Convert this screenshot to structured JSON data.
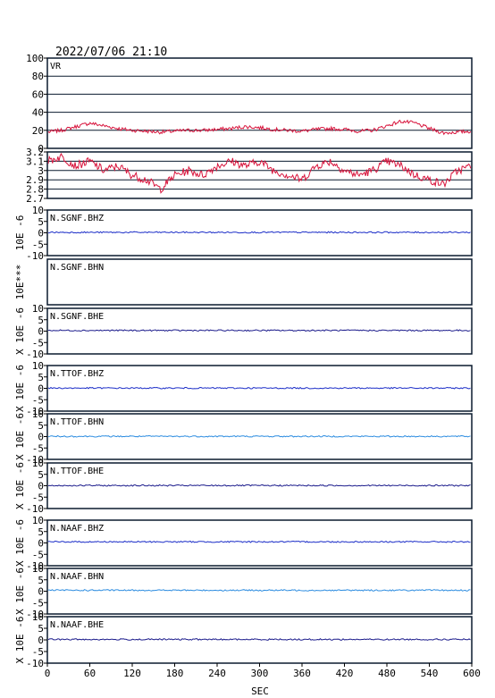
{
  "title": "2022/07/06 21:10",
  "xlabel": "SEC",
  "x_ticks": [
    0,
    60,
    120,
    180,
    240,
    300,
    360,
    420,
    480,
    540,
    600
  ],
  "chart_data": [
    {
      "type": "line",
      "label": "VR",
      "xlim": [
        0,
        600
      ],
      "ylim": [
        0,
        100
      ],
      "yticks": [
        0,
        20,
        40,
        60,
        80,
        100
      ],
      "grid": true,
      "color": "#d8143c",
      "y_axis_label": "",
      "series": [
        {
          "name": "VR",
          "x": [
            0,
            20,
            40,
            60,
            80,
            100,
            120,
            140,
            160,
            180,
            200,
            220,
            240,
            260,
            280,
            300,
            320,
            340,
            360,
            380,
            400,
            420,
            440,
            460,
            480,
            500,
            520,
            540,
            560,
            580,
            600
          ],
          "values": [
            18,
            20,
            24,
            28,
            25,
            22,
            20,
            19,
            18,
            19,
            20,
            20,
            21,
            22,
            24,
            23,
            21,
            20,
            19,
            21,
            22,
            21,
            19,
            20,
            25,
            30,
            28,
            22,
            17,
            18,
            19
          ]
        }
      ]
    },
    {
      "type": "line",
      "label": "",
      "xlim": [
        0,
        600
      ],
      "ylim": [
        2.7,
        3.2
      ],
      "yticks": [
        2.7,
        2.8,
        2.9,
        3.0,
        3.1,
        3.2
      ],
      "grid": true,
      "color": "#d8143c",
      "y_axis_label": "",
      "series": [
        {
          "name": "",
          "x": [
            0,
            20,
            40,
            60,
            80,
            100,
            120,
            140,
            160,
            180,
            200,
            220,
            240,
            260,
            280,
            300,
            320,
            340,
            360,
            380,
            400,
            420,
            440,
            460,
            480,
            500,
            520,
            540,
            560,
            580,
            600
          ],
          "values": [
            3.1,
            3.15,
            3.05,
            3.1,
            3.0,
            3.05,
            2.95,
            2.9,
            2.8,
            2.95,
            3.0,
            2.95,
            3.05,
            3.1,
            3.05,
            3.1,
            3.0,
            2.95,
            2.9,
            3.05,
            3.1,
            3.0,
            2.95,
            3.0,
            3.1,
            3.05,
            2.95,
            2.9,
            2.85,
            3.0,
            3.05
          ]
        }
      ]
    },
    {
      "type": "line",
      "label": "N.SGNF.BHZ",
      "xlim": [
        0,
        600
      ],
      "ylim": [
        -10,
        10
      ],
      "yticks": [
        -10,
        -5,
        0,
        5,
        10
      ],
      "grid": false,
      "color": "#1c2ec8",
      "y_axis_label": "10E -6",
      "noise_amplitude": 0.3,
      "series": [
        {
          "name": "N.SGNF.BHZ",
          "x": [
            0,
            600
          ],
          "values": [
            0.2,
            0.2
          ]
        }
      ]
    },
    {
      "type": "line",
      "label": "N.SGNF.BHN",
      "xlim": [
        0,
        600
      ],
      "ylim": [],
      "yticks": [],
      "grid": false,
      "color": "#1c2ec8",
      "y_axis_label": "10E***",
      "series": []
    },
    {
      "type": "line",
      "label": "N.SGNF.BHE",
      "xlim": [
        0,
        600
      ],
      "ylim": [
        -10,
        10
      ],
      "yticks": [
        -10,
        -5,
        0,
        5,
        10
      ],
      "grid": false,
      "color": "#1c1c8c",
      "y_axis_label": "X 10E -6",
      "noise_amplitude": 0.3,
      "series": [
        {
          "name": "N.SGNF.BHE",
          "x": [
            0,
            600
          ],
          "values": [
            0.3,
            0.3
          ]
        }
      ]
    },
    {
      "type": "line",
      "label": "N.TTOF.BHZ",
      "xlim": [
        0,
        600
      ],
      "ylim": [
        -10,
        10
      ],
      "yticks": [
        -10,
        -5,
        0,
        5,
        10
      ],
      "grid": false,
      "color": "#1c2ec8",
      "y_axis_label": "X 10E -6",
      "noise_amplitude": 0.3,
      "series": [
        {
          "name": "N.TTOF.BHZ",
          "x": [
            0,
            600
          ],
          "values": [
            0.1,
            0.1
          ]
        }
      ]
    },
    {
      "type": "line",
      "label": "N.TTOF.BHN",
      "xlim": [
        0,
        600
      ],
      "ylim": [
        -10,
        10
      ],
      "yticks": [
        -10,
        -5,
        0,
        5,
        10
      ],
      "grid": false,
      "color": "#2c8ce0",
      "y_axis_label": "X 10E -6",
      "noise_amplitude": 0.3,
      "series": [
        {
          "name": "N.TTOF.BHN",
          "x": [
            0,
            600
          ],
          "values": [
            0.1,
            0.1
          ]
        }
      ]
    },
    {
      "type": "line",
      "label": "N.TTOF.BHE",
      "xlim": [
        0,
        600
      ],
      "ylim": [
        -10,
        10
      ],
      "yticks": [
        -10,
        -5,
        0,
        5,
        10
      ],
      "grid": false,
      "color": "#1c1c8c",
      "y_axis_label": "X 10E -6",
      "noise_amplitude": 0.3,
      "series": [
        {
          "name": "N.TTOF.BHE",
          "x": [
            0,
            600
          ],
          "values": [
            0.1,
            0.1
          ]
        }
      ]
    },
    {
      "type": "line",
      "label": "N.NAAF.BHZ",
      "xlim": [
        0,
        600
      ],
      "ylim": [
        -10,
        10
      ],
      "yticks": [
        -10,
        -5,
        0,
        5,
        10
      ],
      "grid": false,
      "color": "#1c2ec8",
      "y_axis_label": "X 10E -6",
      "noise_amplitude": 0.3,
      "series": [
        {
          "name": "N.NAAF.BHZ",
          "x": [
            0,
            600
          ],
          "values": [
            0.5,
            0.5
          ]
        }
      ]
    },
    {
      "type": "line",
      "label": "N.NAAF.BHN",
      "xlim": [
        0,
        600
      ],
      "ylim": [
        -10,
        10
      ],
      "yticks": [
        -10,
        -5,
        0,
        5,
        10
      ],
      "grid": false,
      "color": "#2c8ce0",
      "y_axis_label": "X 10E -6",
      "noise_amplitude": 0.3,
      "series": [
        {
          "name": "N.NAAF.BHN",
          "x": [
            0,
            600
          ],
          "values": [
            0.4,
            0.4
          ]
        }
      ]
    },
    {
      "type": "line",
      "label": "N.NAAF.BHE",
      "xlim": [
        0,
        600
      ],
      "ylim": [
        -10,
        10
      ],
      "yticks": [
        -10,
        -5,
        0,
        5,
        10
      ],
      "grid": false,
      "color": "#1c1c8c",
      "y_axis_label": "X 10E -6",
      "noise_amplitude": 0.3,
      "series": [
        {
          "name": "N.NAAF.BHE",
          "x": [
            0,
            600
          ],
          "values": [
            0.2,
            0.2
          ]
        }
      ]
    }
  ]
}
